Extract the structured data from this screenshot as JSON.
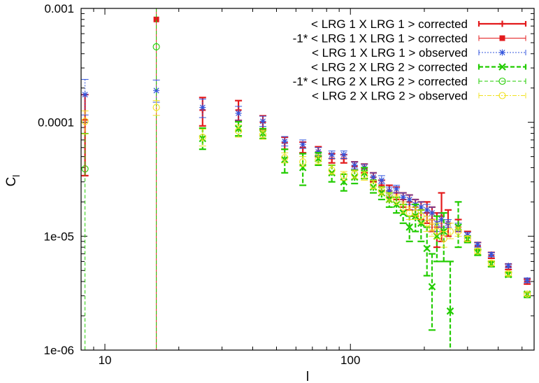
{
  "chart_data": {
    "type": "scatter",
    "title": "",
    "xlabel": "l",
    "ylabel_main": "C",
    "ylabel_sub": "l",
    "xscale": "log",
    "yscale": "log",
    "xlim": [
      8,
      560
    ],
    "ylim": [
      1e-06,
      0.001
    ],
    "x_ticks": [
      {
        "value": 10,
        "label": "10"
      },
      {
        "value": 100,
        "label": "100"
      }
    ],
    "y_ticks": [
      {
        "value": 1e-06,
        "label": "1e-06"
      },
      {
        "value": 1e-05,
        "label": "1e-05"
      },
      {
        "value": 0.0001,
        "label": "0.0001"
      },
      {
        "value": 0.001,
        "label": "0.001"
      }
    ],
    "legend_position": "top-right",
    "series": [
      {
        "name": "< LRG 1 X LRG 1 > corrected",
        "color": "#e31a1c",
        "marker": "plus",
        "line": "solid",
        "points": [
          {
            "x": 8.3,
            "y": 0.000105,
            "lo": 3.4e-05,
            "hi": 0.000175
          },
          {
            "x": 25,
            "y": 0.000128,
            "lo": 9.3e-05,
            "hi": 0.000165
          },
          {
            "x": 35,
            "y": 0.000128,
            "lo": 0.000104,
            "hi": 0.000155
          },
          {
            "x": 44,
            "y": 0.0001,
            "lo": 8.7e-05,
            "hi": 0.000114
          },
          {
            "x": 54,
            "y": 6.6e-05,
            "lo": 5.8e-05,
            "hi": 7.4e-05
          },
          {
            "x": 64,
            "y": 6e-05,
            "lo": 5.4e-05,
            "hi": 6.7e-05
          },
          {
            "x": 74,
            "y": 5.5e-05,
            "lo": 5e-05,
            "hi": 6.1e-05
          },
          {
            "x": 84,
            "y": 4.8e-05,
            "lo": 4.4e-05,
            "hi": 5.3e-05
          },
          {
            "x": 94,
            "y": 4.8e-05,
            "lo": 4.4e-05,
            "hi": 5.2e-05
          },
          {
            "x": 104,
            "y": 4.1e-05,
            "lo": 3.8e-05,
            "hi": 4.5e-05
          },
          {
            "x": 114,
            "y": 3.9e-05,
            "lo": 3.6e-05,
            "hi": 4.3e-05
          },
          {
            "x": 124,
            "y": 3.3e-05,
            "lo": 3e-05,
            "hi": 3.6e-05
          },
          {
            "x": 134,
            "y": 2.8e-05,
            "lo": 2.5e-05,
            "hi": 3.1e-05
          },
          {
            "x": 144,
            "y": 2.5e-05,
            "lo": 2.2e-05,
            "hi": 2.8e-05
          },
          {
            "x": 154,
            "y": 2.4e-05,
            "lo": 2.1e-05,
            "hi": 2.7e-05
          },
          {
            "x": 164,
            "y": 2.1e-05,
            "lo": 1.8e-05,
            "hi": 2.4e-05
          },
          {
            "x": 174,
            "y": 2e-05,
            "lo": 1.7e-05,
            "hi": 2.3e-05
          },
          {
            "x": 184,
            "y": 1.8e-05,
            "lo": 1.5e-05,
            "hi": 2.1e-05
          },
          {
            "x": 194,
            "y": 1.7e-05,
            "lo": 1.4e-05,
            "hi": 2e-05
          },
          {
            "x": 205,
            "y": 1.6e-05,
            "lo": 1.3e-05,
            "hi": 2e-05
          },
          {
            "x": 215,
            "y": 1.4e-05,
            "lo": 1.1e-05,
            "hi": 1.8e-05
          },
          {
            "x": 225,
            "y": 1.2e-05,
            "lo": 8e-06,
            "hi": 1.6e-05
          },
          {
            "x": 235,
            "y": 1.5e-05,
            "lo": 9e-06,
            "hi": 2.4e-05
          },
          {
            "x": 250,
            "y": 1.3e-05,
            "lo": 1e-05,
            "hi": 1.7e-05
          },
          {
            "x": 275,
            "y": 1.2e-05,
            "lo": 1.1e-05,
            "hi": 1.4e-05
          },
          {
            "x": 300,
            "y": 1e-05,
            "lo": 9e-06,
            "hi": 1.1e-05
          },
          {
            "x": 330,
            "y": 8.2e-06,
            "lo": 7.6e-06,
            "hi": 8.8e-06
          },
          {
            "x": 375,
            "y": 6.8e-06,
            "lo": 6.4e-06,
            "hi": 7.2e-06
          },
          {
            "x": 440,
            "y": 5.4e-06,
            "lo": 5.1e-06,
            "hi": 5.7e-06
          },
          {
            "x": 525,
            "y": 4e-06,
            "lo": 3.8e-06,
            "hi": 4.2e-06
          }
        ]
      },
      {
        "name": "-1* < LRG 1 X LRG 1 > corrected",
        "color": "#e31a1c",
        "marker": "filled-square",
        "line": "solid-thin",
        "points": [
          {
            "x": 16.2,
            "y": 0.0008,
            "lo": 1e-07,
            "hi": 0.0015
          }
        ]
      },
      {
        "name": "< LRG 1 X LRG 1 > observed",
        "color": "#3355dd",
        "marker": "star",
        "line": "dotted",
        "points": [
          {
            "x": 8.3,
            "y": 0.000175,
            "lo": 0.000116,
            "hi": 0.000238
          },
          {
            "x": 16.2,
            "y": 0.00019,
            "lo": 0.00015,
            "hi": 0.000235
          },
          {
            "x": 25,
            "y": 0.000135,
            "lo": 0.00011,
            "hi": 0.00016
          },
          {
            "x": 35,
            "y": 0.00012,
            "lo": 0.000104,
            "hi": 0.000138
          },
          {
            "x": 44,
            "y": 0.000102,
            "lo": 9.2e-05,
            "hi": 0.000113
          },
          {
            "x": 54,
            "y": 6.8e-05,
            "lo": 6.2e-05,
            "hi": 7.5e-05
          },
          {
            "x": 64,
            "y": 6.4e-05,
            "lo": 5.9e-05,
            "hi": 7e-05
          },
          {
            "x": 74,
            "y": 5.5e-05,
            "lo": 5.1e-05,
            "hi": 6e-05
          },
          {
            "x": 84,
            "y": 5.2e-05,
            "lo": 4.8e-05,
            "hi": 5.6e-05
          },
          {
            "x": 94,
            "y": 5.2e-05,
            "lo": 4.8e-05,
            "hi": 5.6e-05
          },
          {
            "x": 104,
            "y": 4.2e-05,
            "lo": 3.9e-05,
            "hi": 4.5e-05
          },
          {
            "x": 114,
            "y": 4e-05,
            "lo": 3.7e-05,
            "hi": 4.3e-05
          },
          {
            "x": 124,
            "y": 3.3e-05,
            "lo": 3.1e-05,
            "hi": 3.6e-05
          },
          {
            "x": 134,
            "y": 3.1e-05,
            "lo": 2.9e-05,
            "hi": 3.4e-05
          },
          {
            "x": 144,
            "y": 2.5e-05,
            "lo": 2.3e-05,
            "hi": 2.7e-05
          },
          {
            "x": 154,
            "y": 2.6e-05,
            "lo": 2.4e-05,
            "hi": 2.8e-05
          },
          {
            "x": 164,
            "y": 2.2e-05,
            "lo": 2e-05,
            "hi": 2.4e-05
          },
          {
            "x": 174,
            "y": 2.1e-05,
            "lo": 1.9e-05,
            "hi": 2.3e-05
          },
          {
            "x": 184,
            "y": 1.9e-05,
            "lo": 1.7e-05,
            "hi": 2.1e-05
          },
          {
            "x": 194,
            "y": 1.8e-05,
            "lo": 1.6e-05,
            "hi": 2e-05
          },
          {
            "x": 205,
            "y": 1.7e-05,
            "lo": 1.5e-05,
            "hi": 1.9e-05
          },
          {
            "x": 215,
            "y": 1.6e-05,
            "lo": 1.4e-05,
            "hi": 1.8e-05
          },
          {
            "x": 225,
            "y": 1.3e-05,
            "lo": 1.1e-05,
            "hi": 1.5e-05
          },
          {
            "x": 235,
            "y": 1.4e-05,
            "lo": 1.2e-05,
            "hi": 1.6e-05
          },
          {
            "x": 250,
            "y": 1.3e-05,
            "lo": 1.2e-05,
            "hi": 1.4e-05
          },
          {
            "x": 275,
            "y": 1.2e-05,
            "lo": 1.1e-05,
            "hi": 1.3e-05
          },
          {
            "x": 300,
            "y": 1.02e-05,
            "lo": 9.6e-06,
            "hi": 1.08e-05
          },
          {
            "x": 330,
            "y": 8.4e-06,
            "lo": 8e-06,
            "hi": 8.8e-06
          },
          {
            "x": 375,
            "y": 6.9e-06,
            "lo": 6.6e-06,
            "hi": 7.2e-06
          },
          {
            "x": 440,
            "y": 5.5e-06,
            "lo": 5.3e-06,
            "hi": 5.7e-06
          },
          {
            "x": 525,
            "y": 4.1e-06,
            "lo": 3.9e-06,
            "hi": 4.3e-06
          }
        ]
      },
      {
        "name": "< LRG 2 X LRG 2 > corrected",
        "color": "#22cc00",
        "marker": "x",
        "line": "dashed",
        "points": [
          {
            "x": 25,
            "y": 7.2e-05,
            "lo": 5.8e-05,
            "hi": 8.9e-05
          },
          {
            "x": 35,
            "y": 8.8e-05,
            "lo": 7.6e-05,
            "hi": 0.000101
          },
          {
            "x": 44,
            "y": 8e-05,
            "lo": 7.2e-05,
            "hi": 8.8e-05
          },
          {
            "x": 54,
            "y": 4.7e-05,
            "lo": 3.6e-05,
            "hi": 5.8e-05
          },
          {
            "x": 64,
            "y": 4e-05,
            "lo": 2.8e-05,
            "hi": 5.3e-05
          },
          {
            "x": 74,
            "y": 4.8e-05,
            "lo": 4.2e-05,
            "hi": 5.4e-05
          },
          {
            "x": 84,
            "y": 3.6e-05,
            "lo": 3e-05,
            "hi": 4.2e-05
          },
          {
            "x": 94,
            "y": 3e-05,
            "lo": 2.5e-05,
            "hi": 3.5e-05
          },
          {
            "x": 104,
            "y": 3.3e-05,
            "lo": 2.9e-05,
            "hi": 3.8e-05
          },
          {
            "x": 114,
            "y": 3.6e-05,
            "lo": 3.2e-05,
            "hi": 4e-05
          },
          {
            "x": 124,
            "y": 2.7e-05,
            "lo": 2.4e-05,
            "hi": 3.1e-05
          },
          {
            "x": 134,
            "y": 2.4e-05,
            "lo": 2.1e-05,
            "hi": 2.7e-05
          },
          {
            "x": 144,
            "y": 2.1e-05,
            "lo": 1.8e-05,
            "hi": 2.4e-05
          },
          {
            "x": 154,
            "y": 1.9e-05,
            "lo": 1.6e-05,
            "hi": 2.2e-05
          },
          {
            "x": 164,
            "y": 1.6e-05,
            "lo": 1.3e-05,
            "hi": 1.9e-05
          },
          {
            "x": 174,
            "y": 1.2e-05,
            "lo": 9e-06,
            "hi": 1.5e-05
          },
          {
            "x": 184,
            "y": 1.5e-05,
            "lo": 1.1e-05,
            "hi": 1.9e-05
          },
          {
            "x": 194,
            "y": 1.3e-05,
            "lo": 9e-06,
            "hi": 1.7e-05
          },
          {
            "x": 205,
            "y": 7.8e-06,
            "lo": 4.5e-06,
            "hi": 1.2e-05
          },
          {
            "x": 215,
            "y": 3.6e-06,
            "lo": 1.5e-06,
            "hi": 7e-06
          },
          {
            "x": 225,
            "y": 1e-05,
            "lo": 6e-06,
            "hi": 1.5e-05
          },
          {
            "x": 240,
            "y": 1.1e-05,
            "lo": 6e-06,
            "hi": 1.6e-05
          },
          {
            "x": 255,
            "y": 2.2e-06,
            "lo": 1e-06,
            "hi": 6e-06
          },
          {
            "x": 275,
            "y": 1.2e-05,
            "lo": 8e-06,
            "hi": 2e-05
          },
          {
            "x": 300,
            "y": 9.4e-06,
            "lo": 8.8e-06,
            "hi": 1e-05
          },
          {
            "x": 330,
            "y": 7.2e-06,
            "lo": 6.8e-06,
            "hi": 7.6e-06
          },
          {
            "x": 375,
            "y": 5.7e-06,
            "lo": 5.4e-06,
            "hi": 6e-06
          },
          {
            "x": 440,
            "y": 4.6e-06,
            "lo": 4.4e-06,
            "hi": 4.8e-06
          },
          {
            "x": 525,
            "y": 3.1e-06,
            "lo": 2.9e-06,
            "hi": 3.2e-06
          }
        ]
      },
      {
        "name": "-1* < LRG 2 X LRG 2 > corrected",
        "color": "#22cc00",
        "marker": "circle",
        "line": "dashed-thin",
        "points": [
          {
            "x": 8.3,
            "y": 3.9e-05,
            "lo": 1e-07,
            "hi": 8e-05
          },
          {
            "x": 16.2,
            "y": 0.00046,
            "lo": 1e-07,
            "hi": 0.0015
          }
        ]
      },
      {
        "name": "< LRG 2 X LRG 2 > observed",
        "color": "#f0e020",
        "marker": "circle",
        "line": "dash-dot",
        "points": [
          {
            "x": 8.3,
            "y": 0.000102,
            "lo": 7.9e-05,
            "hi": 0.000126
          },
          {
            "x": 16.2,
            "y": 0.000135,
            "lo": 0.000115,
            "hi": 0.000155
          },
          {
            "x": 25,
            "y": 7.4e-05,
            "lo": 6.2e-05,
            "hi": 8.7e-05
          },
          {
            "x": 35,
            "y": 8.4e-05,
            "lo": 7.4e-05,
            "hi": 9.5e-05
          },
          {
            "x": 44,
            "y": 7.8e-05,
            "lo": 7.1e-05,
            "hi": 8.5e-05
          },
          {
            "x": 54,
            "y": 4.9e-05,
            "lo": 4.4e-05,
            "hi": 5.4e-05
          },
          {
            "x": 64,
            "y": 4.5e-05,
            "lo": 4.1e-05,
            "hi": 5e-05
          },
          {
            "x": 74,
            "y": 4.7e-05,
            "lo": 4.3e-05,
            "hi": 5.2e-05
          },
          {
            "x": 84,
            "y": 3.8e-05,
            "lo": 3.5e-05,
            "hi": 4.2e-05
          },
          {
            "x": 94,
            "y": 3.4e-05,
            "lo": 3.1e-05,
            "hi": 3.7e-05
          },
          {
            "x": 104,
            "y": 3.5e-05,
            "lo": 3.2e-05,
            "hi": 3.8e-05
          },
          {
            "x": 114,
            "y": 3.4e-05,
            "lo": 3.1e-05,
            "hi": 3.7e-05
          },
          {
            "x": 124,
            "y": 2.8e-05,
            "lo": 2.6e-05,
            "hi": 3.1e-05
          },
          {
            "x": 134,
            "y": 2.5e-05,
            "lo": 2.3e-05,
            "hi": 2.7e-05
          },
          {
            "x": 144,
            "y": 2.2e-05,
            "lo": 2e-05,
            "hi": 2.4e-05
          },
          {
            "x": 154,
            "y": 2.1e-05,
            "lo": 1.9e-05,
            "hi": 2.3e-05
          },
          {
            "x": 164,
            "y": 1.8e-05,
            "lo": 1.6e-05,
            "hi": 2e-05
          },
          {
            "x": 174,
            "y": 1.6e-05,
            "lo": 1.4e-05,
            "hi": 1.8e-05
          },
          {
            "x": 184,
            "y": 1.6e-05,
            "lo": 1.4e-05,
            "hi": 1.8e-05
          },
          {
            "x": 194,
            "y": 1.5e-05,
            "lo": 1.3e-05,
            "hi": 1.7e-05
          },
          {
            "x": 205,
            "y": 1.3e-05,
            "lo": 1.1e-05,
            "hi": 1.5e-05
          },
          {
            "x": 215,
            "y": 1.2e-05,
            "lo": 1e-05,
            "hi": 1.4e-05
          },
          {
            "x": 225,
            "y": 1.1e-05,
            "lo": 9.5e-06,
            "hi": 1.3e-05
          },
          {
            "x": 240,
            "y": 9.5e-06,
            "lo": 8e-06,
            "hi": 1.1e-05
          },
          {
            "x": 255,
            "y": 1.1e-05,
            "lo": 9.5e-06,
            "hi": 1.3e-05
          },
          {
            "x": 275,
            "y": 1.1e-05,
            "lo": 1e-05,
            "hi": 1.2e-05
          },
          {
            "x": 300,
            "y": 9.5e-06,
            "lo": 9e-06,
            "hi": 1e-05
          },
          {
            "x": 330,
            "y": 7.4e-06,
            "lo": 7e-06,
            "hi": 7.8e-06
          },
          {
            "x": 375,
            "y": 5.8e-06,
            "lo": 5.5e-06,
            "hi": 6.1e-06
          },
          {
            "x": 440,
            "y": 4.7e-06,
            "lo": 4.5e-06,
            "hi": 4.9e-06
          },
          {
            "x": 525,
            "y": 3.1e-06,
            "lo": 3e-06,
            "hi": 3.2e-06
          }
        ]
      }
    ]
  }
}
